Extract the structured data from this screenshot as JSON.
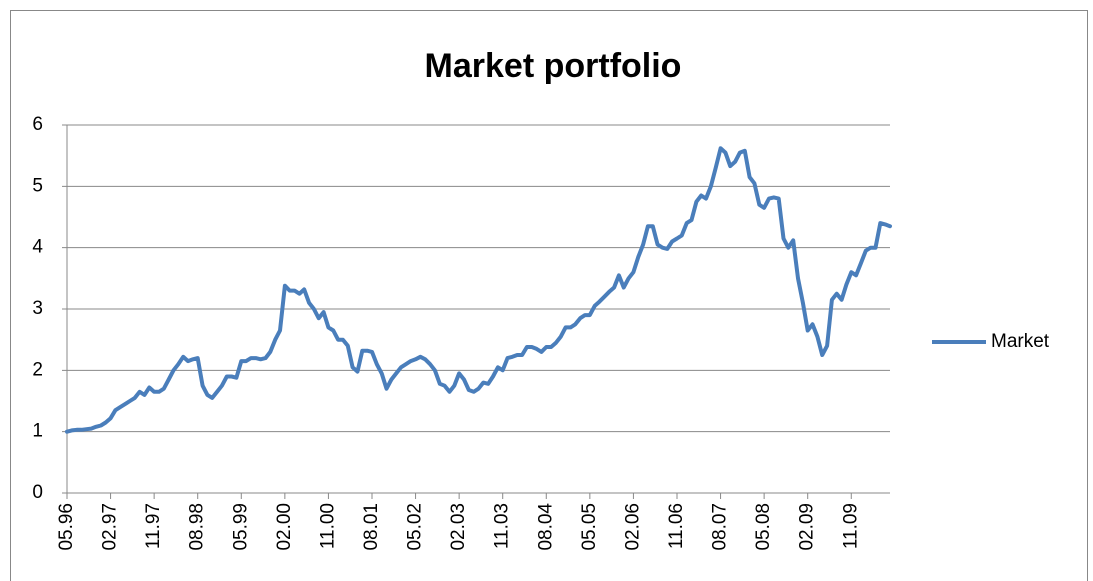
{
  "chart_data": {
    "type": "line",
    "title": "Market portfolio",
    "categories": [
      "05.96",
      null,
      null,
      null,
      null,
      null,
      null,
      null,
      null,
      "02.97",
      null,
      null,
      null,
      null,
      null,
      null,
      null,
      null,
      "11.97",
      null,
      null,
      null,
      null,
      null,
      null,
      null,
      null,
      "08.98",
      null,
      null,
      null,
      null,
      null,
      null,
      null,
      null,
      "05.99",
      null,
      null,
      null,
      null,
      null,
      null,
      null,
      null,
      "02.00",
      null,
      null,
      null,
      null,
      null,
      null,
      null,
      null,
      "11.00",
      null,
      null,
      null,
      null,
      null,
      null,
      null,
      null,
      "08.01",
      null,
      null,
      null,
      null,
      null,
      null,
      null,
      null,
      "05.02",
      null,
      null,
      null,
      null,
      null,
      null,
      null,
      null,
      "02.03",
      null,
      null,
      null,
      null,
      null,
      null,
      null,
      null,
      "11.03",
      null,
      null,
      null,
      null,
      null,
      null,
      null,
      null,
      "08.04",
      null,
      null,
      null,
      null,
      null,
      null,
      null,
      null,
      "05.05",
      null,
      null,
      null,
      null,
      null,
      null,
      null,
      null,
      "02.06",
      null,
      null,
      null,
      null,
      null,
      null,
      null,
      null,
      "11.06",
      null,
      null,
      null,
      null,
      null,
      null,
      null,
      null,
      "08.07",
      null,
      null,
      null,
      null,
      null,
      null,
      null,
      null,
      "05.08",
      null,
      null,
      null,
      null,
      null,
      null,
      null,
      null,
      "02.09",
      null,
      null,
      null,
      null,
      null,
      null,
      null,
      null,
      "11.09",
      null,
      null,
      null,
      null,
      null,
      null,
      null,
      null
    ],
    "series": [
      {
        "name": "Market",
        "color": "#4a7ebb",
        "values": [
          1.0,
          1.02,
          1.03,
          1.03,
          1.04,
          1.05,
          1.08,
          1.1,
          1.15,
          1.22,
          1.35,
          1.4,
          1.45,
          1.5,
          1.55,
          1.65,
          1.6,
          1.72,
          1.65,
          1.65,
          1.7,
          1.85,
          2.0,
          2.1,
          2.22,
          2.15,
          2.18,
          2.2,
          1.75,
          1.6,
          1.55,
          1.65,
          1.75,
          1.9,
          1.9,
          1.88,
          2.15,
          2.15,
          2.2,
          2.2,
          2.18,
          2.2,
          2.3,
          2.5,
          2.65,
          3.38,
          3.3,
          3.3,
          3.25,
          3.32,
          3.1,
          3.0,
          2.85,
          2.95,
          2.7,
          2.65,
          2.5,
          2.5,
          2.4,
          2.05,
          1.98,
          2.32,
          2.32,
          2.3,
          2.1,
          1.95,
          1.7,
          1.85,
          1.95,
          2.05,
          2.1,
          2.15,
          2.18,
          2.22,
          2.18,
          2.1,
          2.0,
          1.78,
          1.75,
          1.65,
          1.75,
          1.95,
          1.85,
          1.68,
          1.65,
          1.7,
          1.8,
          1.78,
          1.9,
          2.05,
          2.0,
          2.2,
          2.22,
          2.25,
          2.25,
          2.38,
          2.38,
          2.35,
          2.3,
          2.38,
          2.38,
          2.45,
          2.55,
          2.7,
          2.7,
          2.75,
          2.85,
          2.9,
          2.9,
          3.05,
          3.12,
          3.2,
          3.28,
          3.35,
          3.55,
          3.35,
          3.5,
          3.6,
          3.85,
          4.05,
          4.35,
          4.35,
          4.05,
          4.0,
          3.98,
          4.1,
          4.15,
          4.2,
          4.4,
          4.45,
          4.75,
          4.85,
          4.8,
          5.0,
          5.3,
          5.62,
          5.55,
          5.33,
          5.4,
          5.55,
          5.58,
          5.15,
          5.05,
          4.7,
          4.65,
          4.8,
          4.82,
          4.8,
          4.15,
          4.0,
          4.12,
          3.5,
          3.1,
          2.65,
          2.75,
          2.55,
          2.25,
          2.4,
          3.15,
          3.25,
          3.15,
          3.4,
          3.6,
          3.55,
          3.75,
          3.95,
          4.0,
          4.0,
          4.4,
          4.38,
          4.35
        ]
      }
    ],
    "ylim": [
      0,
      6
    ],
    "yticks": [
      0,
      1,
      2,
      3,
      4,
      5,
      6
    ],
    "grid": true,
    "legend": "right"
  }
}
